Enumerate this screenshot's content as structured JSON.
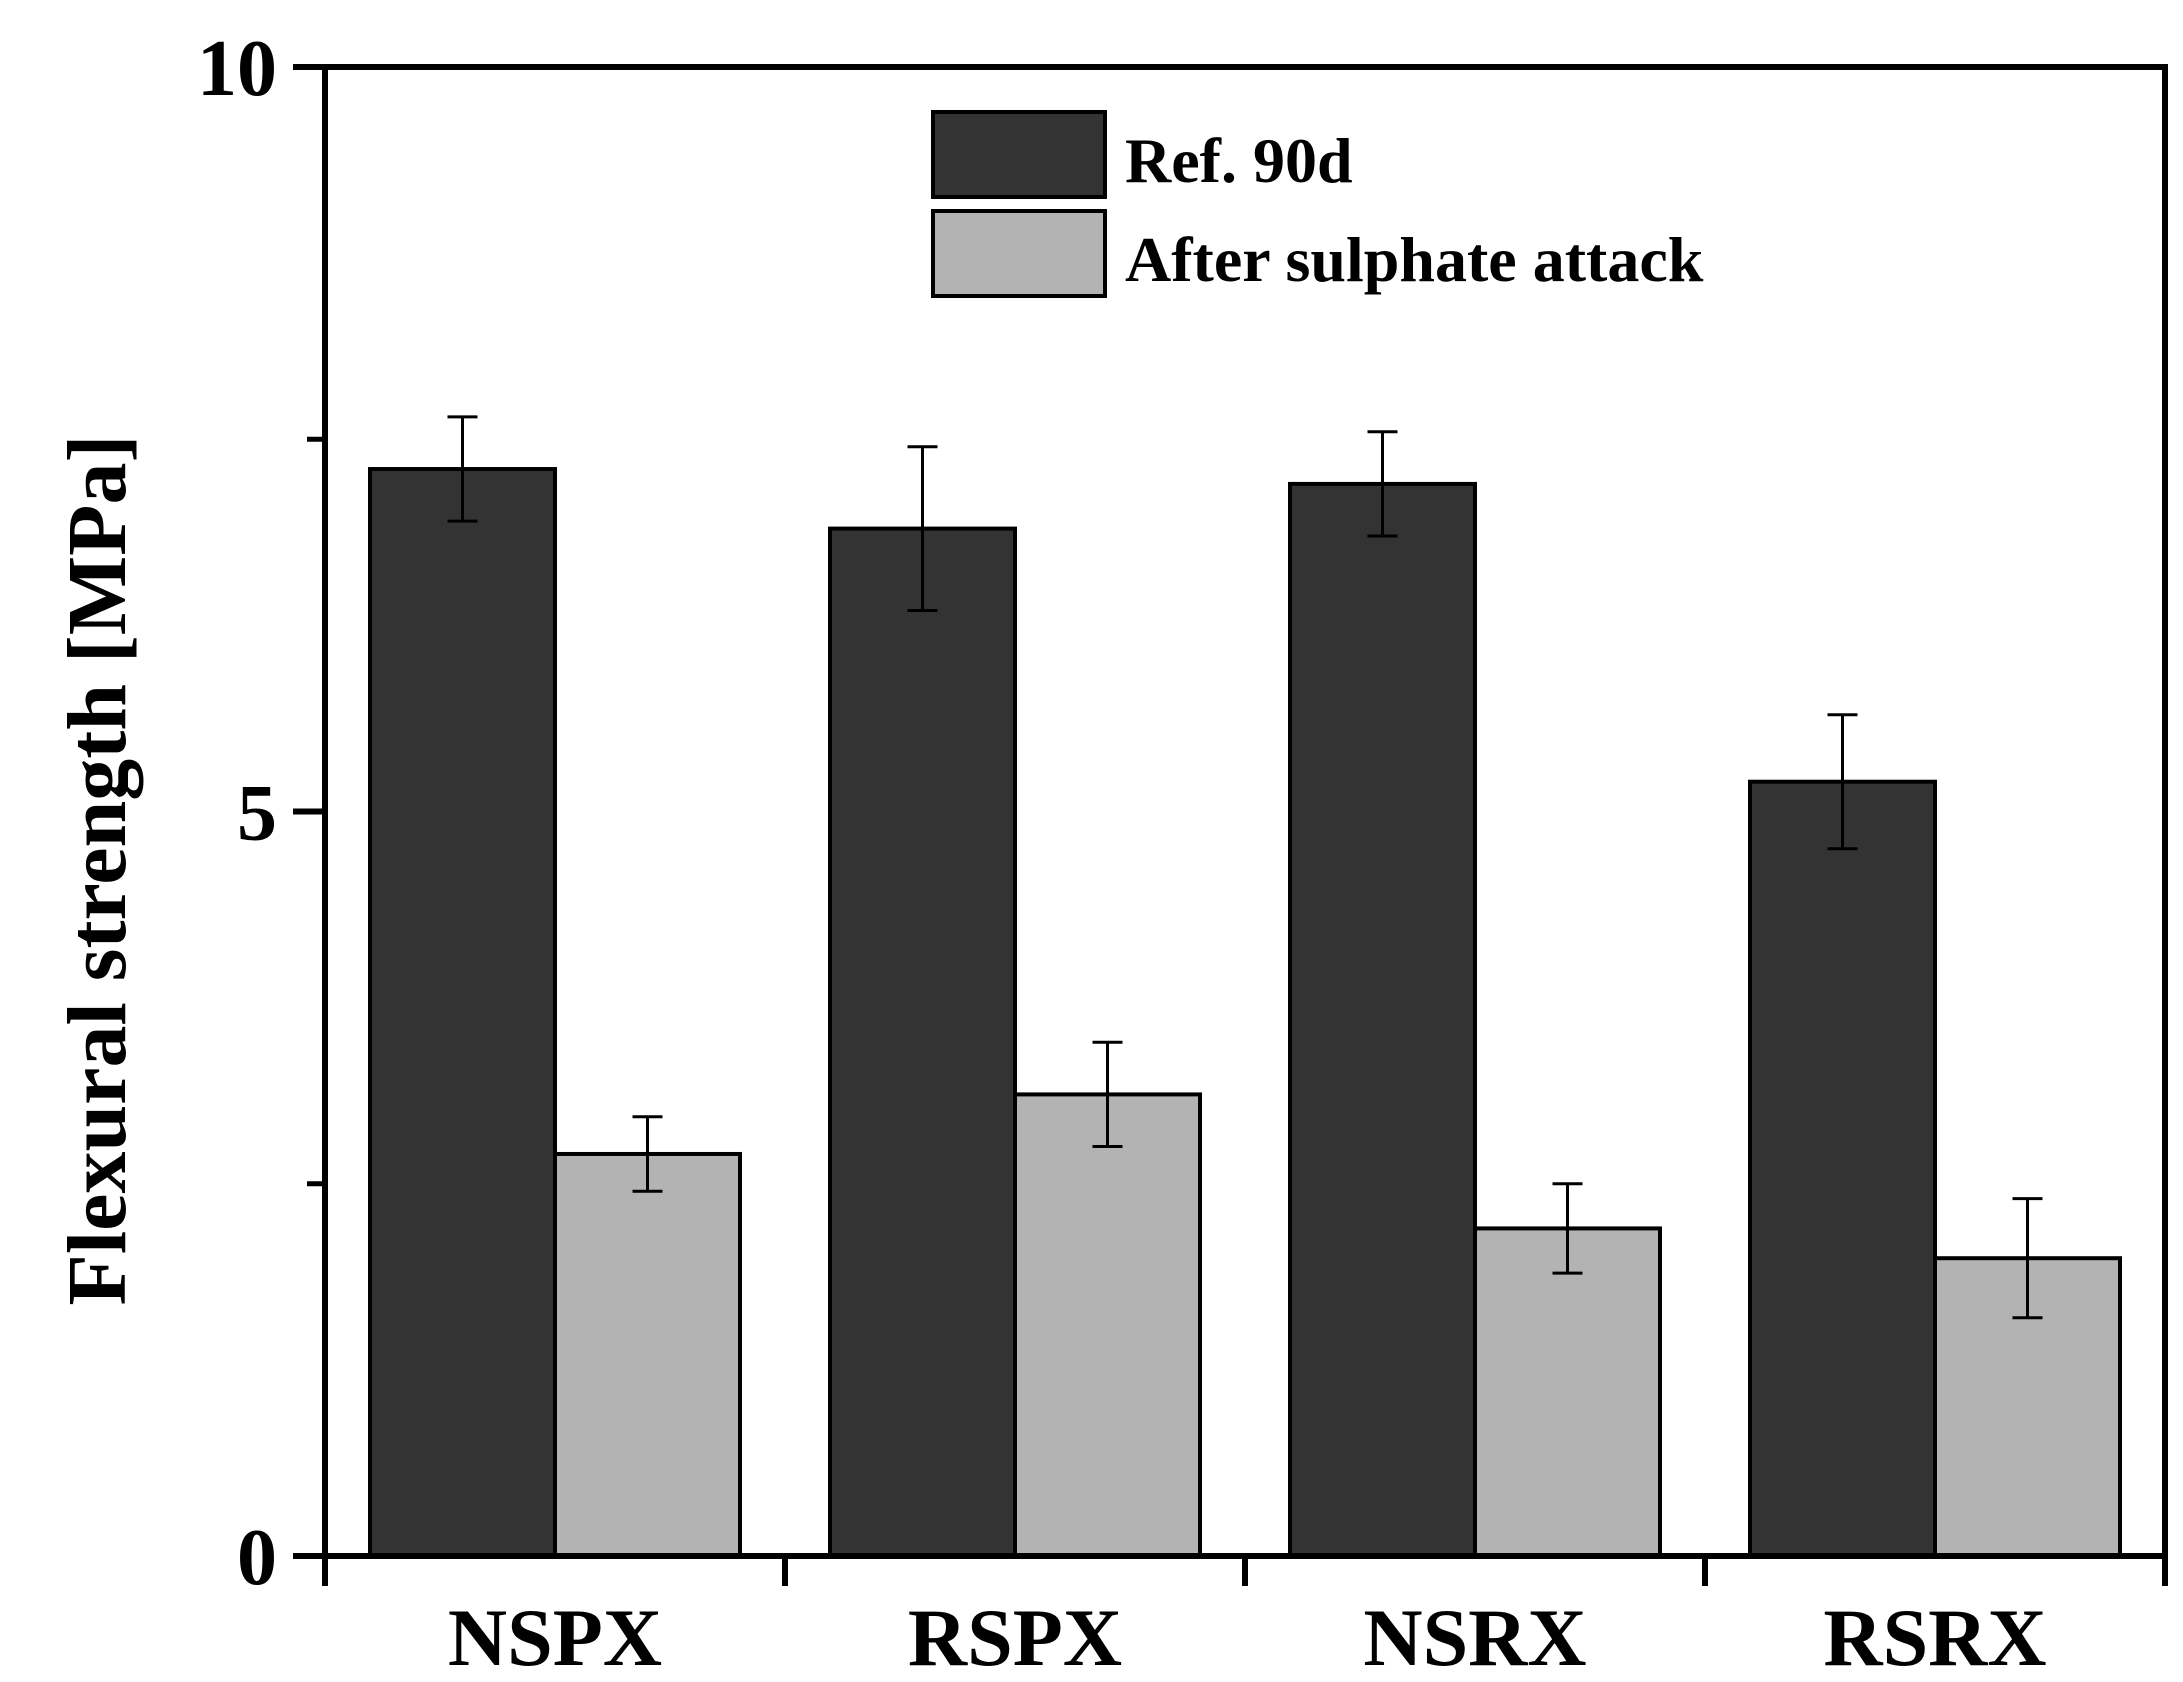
{
  "chart_data": {
    "type": "bar",
    "title": "",
    "xlabel": "",
    "ylabel": "Flexural strength [MPa]",
    "ylim": [
      0,
      10
    ],
    "yticks": [
      0,
      5,
      10
    ],
    "y_minor_ticks": [
      2.5,
      7.5
    ],
    "categories": [
      "NSPX",
      "RSPX",
      "NSRX",
      "RSRX"
    ],
    "series": [
      {
        "name": "Ref. 90d",
        "color": "#333333",
        "values": [
          7.3,
          6.9,
          7.2,
          5.2
        ],
        "errors": [
          0.35,
          0.55,
          0.35,
          0.45
        ]
      },
      {
        "name": "After sulphate attack",
        "color": "#b3b3b3",
        "values": [
          2.7,
          3.1,
          2.2,
          2.0
        ],
        "errors": [
          0.25,
          0.35,
          0.3,
          0.4
        ]
      }
    ],
    "legend_position": "top-center"
  }
}
